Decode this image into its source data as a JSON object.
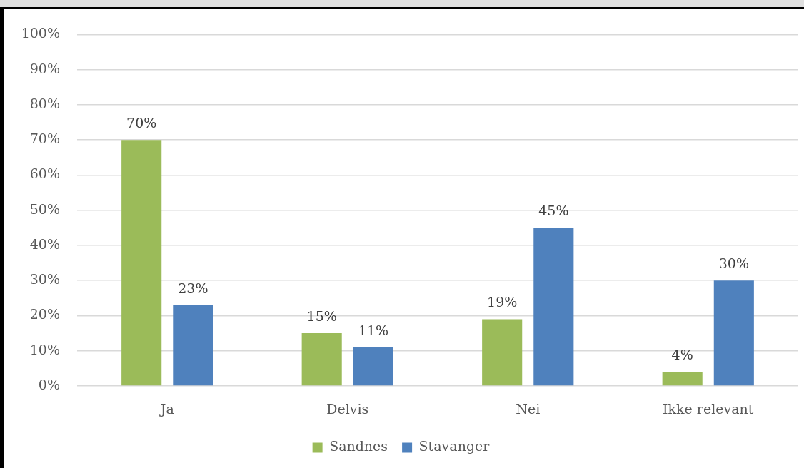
{
  "chart_data": {
    "type": "bar",
    "categories": [
      "Ja",
      "Delvis",
      "Nei",
      "Ikke relevant"
    ],
    "series": [
      {
        "name": "Sandnes",
        "color": "#9bbb59",
        "values": [
          70,
          15,
          19,
          4
        ],
        "value_labels": [
          "70%",
          "15%",
          "19%",
          "4%"
        ]
      },
      {
        "name": "Stavanger",
        "color": "#4f81bd",
        "values": [
          23,
          11,
          45,
          30
        ],
        "value_labels": [
          "23%",
          "11%",
          "45%",
          "30%"
        ]
      }
    ],
    "ylim": [
      0,
      100
    ],
    "yticks": [
      {
        "value": 0,
        "label": "0%"
      },
      {
        "value": 10,
        "label": "10%"
      },
      {
        "value": 20,
        "label": "20%"
      },
      {
        "value": 30,
        "label": "30%"
      },
      {
        "value": 40,
        "label": "40%"
      },
      {
        "value": 50,
        "label": "50%"
      },
      {
        "value": 60,
        "label": "60%"
      },
      {
        "value": 70,
        "label": "70%"
      },
      {
        "value": 80,
        "label": "80%"
      },
      {
        "value": 90,
        "label": "90%"
      },
      {
        "value": 100,
        "label": "100%"
      }
    ],
    "grid": "y",
    "legend": "bottom"
  }
}
